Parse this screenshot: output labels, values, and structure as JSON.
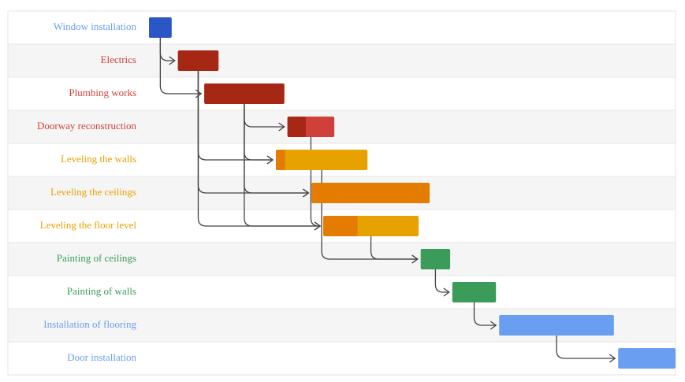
{
  "chart_data": {
    "type": "gantt",
    "xlim": [
      0,
      100
    ],
    "tasks": [
      {
        "name": "Window installation",
        "start": 0,
        "end": 4.3,
        "percent_complete": 100,
        "color": "#6a9ef0",
        "progress_color": "#2a56c6"
      },
      {
        "name": "Electrics",
        "start": 5.5,
        "end": 13.2,
        "percent_complete": 100,
        "color": "#d0403a",
        "progress_color": "#a52714"
      },
      {
        "name": "Plumbing works",
        "start": 10.5,
        "end": 25.7,
        "percent_complete": 100,
        "color": "#d0403a",
        "progress_color": "#a52714"
      },
      {
        "name": "Doorway reconstruction",
        "start": 26.3,
        "end": 35.2,
        "percent_complete": 39,
        "color": "#d0403a",
        "progress_color": "#a52714"
      },
      {
        "name": "Leveling the walls",
        "start": 24.1,
        "end": 41.5,
        "percent_complete": 10,
        "color": "#e8a200",
        "progress_color": "#e37c00"
      },
      {
        "name": "Leveling the ceilings",
        "start": 30.9,
        "end": 53.3,
        "percent_complete": 100,
        "color": "#e8a200",
        "progress_color": "#e37c00"
      },
      {
        "name": "Leveling the floor level",
        "start": 33.1,
        "end": 51.2,
        "percent_complete": 36,
        "color": "#e8a200",
        "progress_color": "#e37c00"
      },
      {
        "name": "Painting of ceilings",
        "start": 51.6,
        "end": 57.2,
        "percent_complete": 0,
        "color": "#3a9c58",
        "progress_color": "#0b8043"
      },
      {
        "name": "Painting of walls",
        "start": 57.6,
        "end": 65.9,
        "percent_complete": 0,
        "color": "#3a9c58",
        "progress_color": "#0b8043"
      },
      {
        "name": "Installation of flooring",
        "start": 66.5,
        "end": 88.3,
        "percent_complete": 0,
        "color": "#6a9ef0",
        "progress_color": "#2a56c6"
      },
      {
        "name": "Door installation",
        "start": 89.1,
        "end": 100,
        "percent_complete": 0,
        "color": "#6a9ef0",
        "progress_color": "#2a56c6"
      }
    ],
    "dependencies": [
      [
        0,
        1
      ],
      [
        0,
        2
      ],
      [
        2,
        3
      ],
      [
        1,
        4
      ],
      [
        2,
        4
      ],
      [
        1,
        5
      ],
      [
        2,
        5
      ],
      [
        1,
        6
      ],
      [
        2,
        6
      ],
      [
        3,
        6
      ],
      [
        4,
        7
      ],
      [
        6,
        7
      ],
      [
        7,
        8
      ],
      [
        8,
        9
      ],
      [
        9,
        10
      ]
    ]
  }
}
